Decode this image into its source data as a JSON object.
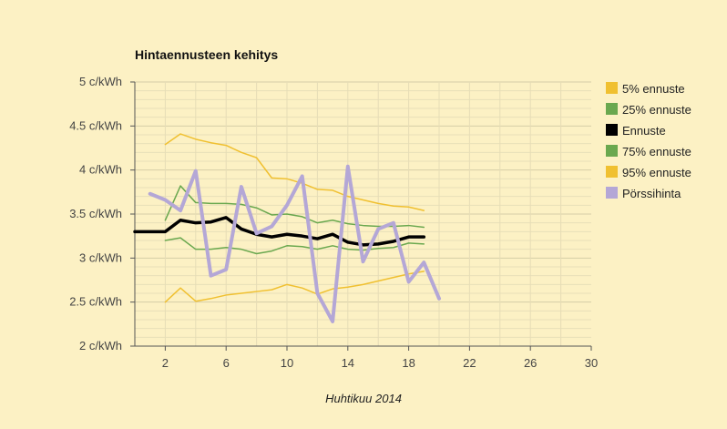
{
  "chart_data": {
    "type": "line",
    "title": "Hintaennusteen kehitys",
    "xlabel": "Huhtikuu 2014",
    "ylabel": "",
    "xlim": [
      0,
      30
    ],
    "ylim": [
      2,
      5
    ],
    "x_ticks": [
      2,
      6,
      10,
      14,
      18,
      22,
      26,
      30
    ],
    "y_ticks": [
      {
        "value": 2,
        "label": "2 c/kWh"
      },
      {
        "value": 2.5,
        "label": "2.5 c/kWh"
      },
      {
        "value": 3,
        "label": "3 c/kWh"
      },
      {
        "value": 3.5,
        "label": "3.5 c/kWh"
      },
      {
        "value": 4,
        "label": "4 c/kWh"
      },
      {
        "value": 4.5,
        "label": "4.5 c/kWh"
      },
      {
        "value": 5,
        "label": "5 c/kWh"
      }
    ],
    "grid": true,
    "legend_position": "right",
    "series": [
      {
        "name": "5% ennuste",
        "color": "#f0c030",
        "width": 1.5,
        "x": [
          2,
          3,
          4,
          5,
          6,
          7,
          8,
          9,
          10,
          11,
          12,
          13,
          14,
          15,
          16,
          17,
          18,
          19
        ],
        "y": [
          4.29,
          4.41,
          4.35,
          4.31,
          4.28,
          4.2,
          4.14,
          3.91,
          3.9,
          3.85,
          3.78,
          3.77,
          3.7,
          3.66,
          3.62,
          3.59,
          3.58,
          3.54
        ]
      },
      {
        "name": "25% ennuste",
        "color": "#6aa84f",
        "width": 1.5,
        "x": [
          2,
          3,
          4,
          5,
          6,
          7,
          8,
          9,
          10,
          11,
          12,
          13,
          14,
          15,
          16,
          17,
          18,
          19
        ],
        "y": [
          3.43,
          3.82,
          3.63,
          3.62,
          3.62,
          3.61,
          3.57,
          3.49,
          3.5,
          3.47,
          3.4,
          3.43,
          3.39,
          3.37,
          3.36,
          3.36,
          3.37,
          3.35
        ]
      },
      {
        "name": "Ennuste",
        "color": "#000000",
        "width": 3.5,
        "x": [
          0,
          1,
          2,
          3,
          4,
          5,
          6,
          7,
          8,
          9,
          10,
          11,
          12,
          13,
          14,
          15,
          16,
          17,
          18,
          19
        ],
        "y": [
          3.3,
          3.3,
          3.3,
          3.43,
          3.4,
          3.41,
          3.46,
          3.33,
          3.27,
          3.24,
          3.27,
          3.25,
          3.22,
          3.27,
          3.18,
          3.15,
          3.16,
          3.19,
          3.24,
          3.24
        ]
      },
      {
        "name": "75% ennuste",
        "color": "#6aa84f",
        "width": 1.5,
        "x": [
          2,
          3,
          4,
          5,
          6,
          7,
          8,
          9,
          10,
          11,
          12,
          13,
          14,
          15,
          16,
          17,
          18,
          19
        ],
        "y": [
          3.2,
          3.23,
          3.1,
          3.1,
          3.12,
          3.1,
          3.05,
          3.08,
          3.14,
          3.13,
          3.1,
          3.14,
          3.1,
          3.09,
          3.11,
          3.12,
          3.17,
          3.16
        ]
      },
      {
        "name": "95% ennuste",
        "color": "#f0c030",
        "width": 1.5,
        "x": [
          2,
          3,
          4,
          5,
          6,
          7,
          8,
          9,
          10,
          11,
          12,
          13,
          14,
          15,
          16,
          17,
          18,
          19
        ],
        "y": [
          2.5,
          2.66,
          2.51,
          2.54,
          2.58,
          2.6,
          2.62,
          2.64,
          2.7,
          2.66,
          2.59,
          2.65,
          2.67,
          2.7,
          2.74,
          2.78,
          2.82,
          2.85
        ]
      },
      {
        "name": "Pörssihinta",
        "color": "#b4a7d6",
        "width": 4,
        "x": [
          1,
          2,
          3,
          4,
          5,
          6,
          7,
          8,
          9,
          10,
          11,
          12,
          13,
          14,
          15,
          16,
          17,
          18,
          19,
          20
        ],
        "y": [
          3.73,
          3.66,
          3.54,
          3.99,
          2.8,
          2.87,
          3.81,
          3.28,
          3.36,
          3.6,
          3.93,
          2.6,
          2.28,
          4.04,
          2.96,
          3.33,
          3.4,
          2.73,
          2.95,
          2.54
        ]
      }
    ]
  }
}
